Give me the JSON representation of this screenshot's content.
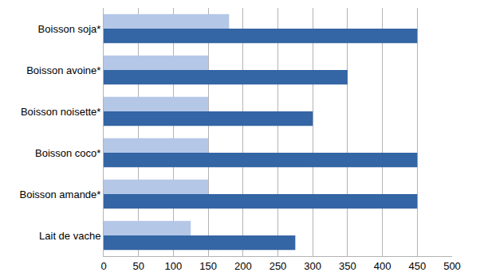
{
  "chart_data": {
    "type": "bar",
    "orientation": "horizontal",
    "categories": [
      "Lait de vache",
      "Boisson amande*",
      "Boisson coco*",
      "Boisson noisette*",
      "Boisson avoine*",
      "Boisson soja*"
    ],
    "series": [
      {
        "color": "#3465a4",
        "values": [
          275,
          450,
          450,
          300,
          350,
          450
        ]
      },
      {
        "color": "#b4c7e7",
        "values": [
          125,
          150,
          150,
          150,
          150,
          180
        ]
      }
    ],
    "xlim": [
      0,
      500
    ],
    "xticks": [
      0,
      50,
      100,
      150,
      200,
      250,
      300,
      350,
      400,
      450,
      500
    ],
    "grid": true
  }
}
